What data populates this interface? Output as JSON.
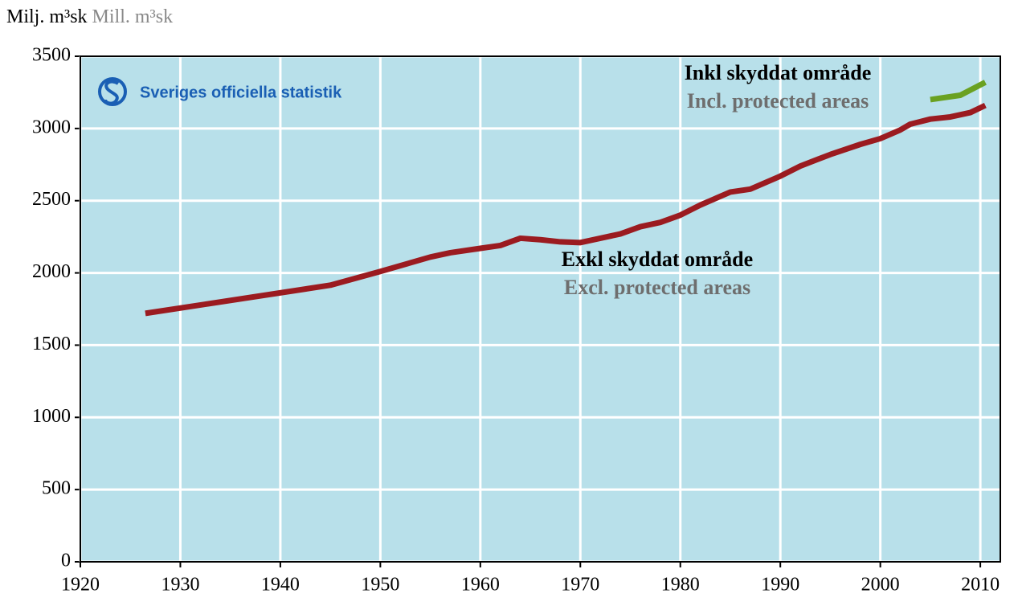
{
  "chart_data": {
    "type": "line",
    "y_unit": "Milj. m³sk",
    "y_unit_en": "Mill. m³sk",
    "logo": "Sveriges officiella statistik",
    "background": "#b8e0ea",
    "grid": true,
    "series": [
      {
        "name": "Exkl skyddat område",
        "name_en": "Excl. protected areas",
        "color": "#9b1b20",
        "x": [
          1926.5,
          1945,
          1950,
          1955,
          1957,
          1960,
          1962,
          1964,
          1966,
          1968,
          1970,
          1972,
          1974,
          1976,
          1978,
          1980,
          1982,
          1985,
          1987,
          1990,
          1992,
          1995,
          1998,
          2000,
          2002,
          2003,
          2005,
          2007,
          2009,
          2010.5
        ],
        "values": [
          1720,
          1915,
          2010,
          2110,
          2140,
          2170,
          2190,
          2240,
          2230,
          2215,
          2210,
          2240,
          2270,
          2320,
          2350,
          2400,
          2470,
          2560,
          2580,
          2670,
          2740,
          2820,
          2890,
          2930,
          2990,
          3030,
          3065,
          3080,
          3110,
          3160
        ]
      },
      {
        "name": "Inkl skyddat område",
        "name_en": "Incl. protected areas",
        "color": "#6aa121",
        "x": [
          2005,
          2008,
          2010.5
        ],
        "values": [
          3200,
          3230,
          3320
        ]
      }
    ],
    "xlim": [
      1920,
      2012
    ],
    "xticks": [
      1920,
      1930,
      1940,
      1950,
      1960,
      1970,
      1980,
      1990,
      2000,
      2010
    ],
    "ylim": [
      0,
      3500
    ],
    "yticks": [
      0,
      500,
      1000,
      1500,
      2000,
      2500,
      3000,
      3500
    ]
  }
}
